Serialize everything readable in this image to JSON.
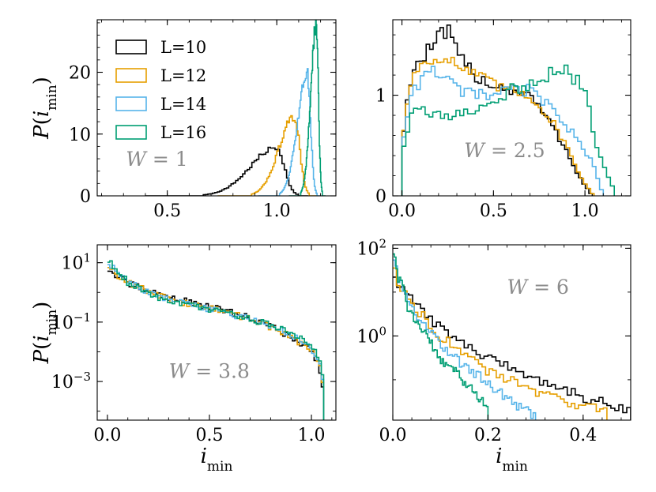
{
  "colors": {
    "L=10": "#000000",
    "L=12": "#E69F00",
    "L=14": "#56B4E9",
    "L=16": "#009E73",
    "annotation": "#8c8c8c"
  },
  "legend": {
    "entries": [
      {
        "label": "L=10",
        "color": "#000000"
      },
      {
        "label": "L=12",
        "color": "#E69F00"
      },
      {
        "label": "L=14",
        "color": "#56B4E9"
      },
      {
        "label": "L=16",
        "color": "#009E73"
      }
    ],
    "placement": "upper-left of top-left panel"
  },
  "chart_data": [
    {
      "type": "line",
      "style": "step",
      "panel": "top-left",
      "annotation": "W = 1",
      "ylabel": "P(i_min)",
      "xlabel": "",
      "xlim": [
        0.18,
        1.27
      ],
      "ylim": [
        0,
        28.5
      ],
      "yscale": "linear",
      "xticks": [
        0.5,
        1.0
      ],
      "xticklabels": [
        "0.5",
        "1.0"
      ],
      "yticks": [
        0,
        10,
        20
      ],
      "yticklabels": [
        "0",
        "10",
        "20"
      ],
      "series": [
        {
          "name": "L=10",
          "kind": "peak",
          "center": 1.0,
          "width_left": 0.12,
          "width_right": 0.035,
          "height": 7.8
        },
        {
          "name": "L=12",
          "kind": "peak",
          "center": 1.08,
          "width_left": 0.07,
          "width_right": 0.025,
          "height": 12.7
        },
        {
          "name": "L=14",
          "kind": "peak",
          "center": 1.14,
          "width_left": 0.045,
          "width_right": 0.015,
          "height": 19.5
        },
        {
          "name": "L=16",
          "kind": "peak",
          "center": 1.18,
          "width_left": 0.025,
          "width_right": 0.01,
          "height": 27.5
        }
      ]
    },
    {
      "type": "line",
      "style": "step",
      "panel": "top-right",
      "annotation": "W = 2.5",
      "ylabel": "",
      "xlabel": "",
      "xlim": [
        -0.05,
        1.25
      ],
      "ylim": [
        0,
        1.75
      ],
      "yscale": "linear",
      "xticks": [
        0.0,
        0.5,
        1.0
      ],
      "xticklabels": [
        "0.0",
        "0.5",
        "1.0"
      ],
      "yticks": [
        0,
        1
      ],
      "yticklabels": [
        "0",
        "1"
      ],
      "series": [
        {
          "name": "L=10",
          "kind": "curve",
          "x": [
            0.0,
            0.01,
            0.05,
            0.1,
            0.2,
            0.25,
            0.3,
            0.4,
            0.5,
            0.6,
            0.7,
            0.8,
            0.9,
            0.95,
            1.0,
            1.04
          ],
          "y": [
            0.0,
            0.7,
            1.2,
            1.35,
            1.55,
            1.65,
            1.4,
            1.2,
            1.1,
            1.05,
            1.0,
            0.75,
            0.45,
            0.25,
            0.1,
            0.0
          ]
        },
        {
          "name": "L=12",
          "kind": "curve",
          "x": [
            0.0,
            0.01,
            0.05,
            0.1,
            0.2,
            0.3,
            0.4,
            0.5,
            0.6,
            0.7,
            0.8,
            0.9,
            0.95,
            1.0,
            1.05
          ],
          "y": [
            0.0,
            0.7,
            1.15,
            1.3,
            1.4,
            1.3,
            1.2,
            1.1,
            1.05,
            1.0,
            0.8,
            0.5,
            0.3,
            0.12,
            0.0
          ]
        },
        {
          "name": "L=14",
          "kind": "curve",
          "x": [
            0.0,
            0.01,
            0.05,
            0.1,
            0.2,
            0.3,
            0.4,
            0.5,
            0.6,
            0.7,
            0.8,
            0.9,
            1.0,
            1.05,
            1.1
          ],
          "y": [
            0.0,
            0.6,
            1.0,
            1.15,
            1.25,
            1.05,
            1.0,
            1.0,
            1.05,
            1.05,
            0.9,
            0.7,
            0.45,
            0.3,
            0.0
          ]
        },
        {
          "name": "L=16",
          "kind": "curve",
          "x": [
            0.0,
            0.01,
            0.05,
            0.1,
            0.2,
            0.3,
            0.4,
            0.5,
            0.6,
            0.7,
            0.8,
            0.9,
            1.0,
            1.05,
            1.1,
            1.15,
            1.16
          ],
          "y": [
            0.0,
            0.5,
            0.8,
            0.85,
            0.8,
            0.8,
            0.85,
            0.95,
            1.05,
            1.1,
            1.2,
            1.25,
            1.05,
            0.6,
            0.3,
            0.1,
            0.0
          ]
        }
      ]
    },
    {
      "type": "line",
      "style": "step",
      "panel": "bottom-left",
      "annotation": "W = 3.8",
      "ylabel": "P(i_min)",
      "xlabel": "i_min",
      "xlim": [
        -0.05,
        1.12
      ],
      "ylim": [
        5e-05,
        40
      ],
      "yscale": "log",
      "xticks": [
        0.0,
        0.5,
        1.0
      ],
      "xticklabels": [
        "0.0",
        "0.5",
        "1.0"
      ],
      "yticks": [
        10,
        0.1,
        0.001
      ],
      "yticklabels": [
        "10^1",
        "10^-1",
        "10^-3"
      ],
      "series": [
        {
          "name": "L=10",
          "kind": "curve",
          "x": [
            0.0,
            0.05,
            0.1,
            0.2,
            0.3,
            0.4,
            0.5,
            0.6,
            0.7,
            0.8,
            0.9,
            1.0,
            1.05,
            1.06
          ],
          "y": [
            6.0,
            3.5,
            2.0,
            1.1,
            0.7,
            0.48,
            0.33,
            0.22,
            0.14,
            0.07,
            0.03,
            0.01,
            0.001,
            0.0002
          ]
        },
        {
          "name": "L=12",
          "kind": "curve",
          "x": [
            0.0,
            0.05,
            0.1,
            0.2,
            0.3,
            0.4,
            0.5,
            0.6,
            0.7,
            0.8,
            0.9,
            1.0,
            1.05,
            1.06
          ],
          "y": [
            8.0,
            4.0,
            2.2,
            1.0,
            0.62,
            0.42,
            0.3,
            0.2,
            0.13,
            0.07,
            0.03,
            0.01,
            0.0015,
            0.0002
          ]
        },
        {
          "name": "L=14",
          "kind": "curve",
          "x": [
            0.0,
            0.05,
            0.1,
            0.2,
            0.3,
            0.4,
            0.5,
            0.6,
            0.7,
            0.8,
            0.9,
            1.0,
            1.05,
            1.06
          ],
          "y": [
            10.0,
            4.5,
            2.3,
            0.95,
            0.58,
            0.4,
            0.28,
            0.19,
            0.13,
            0.075,
            0.035,
            0.012,
            0.002,
            0.0002
          ]
        },
        {
          "name": "L=16",
          "kind": "curve",
          "x": [
            0.0,
            0.05,
            0.1,
            0.2,
            0.3,
            0.4,
            0.5,
            0.6,
            0.7,
            0.8,
            0.9,
            1.0,
            1.05,
            1.06
          ],
          "y": [
            12.0,
            4.8,
            2.2,
            0.9,
            0.55,
            0.38,
            0.27,
            0.19,
            0.13,
            0.08,
            0.04,
            0.015,
            0.003,
            0.0002
          ]
        }
      ]
    },
    {
      "type": "line",
      "style": "step",
      "panel": "bottom-right",
      "annotation": "W = 6",
      "ylabel": "",
      "xlabel": "i_min",
      "xlim": [
        0.0,
        0.5
      ],
      "ylim": [
        0.012,
        120
      ],
      "yscale": "log",
      "xticks": [
        0.0,
        0.2,
        0.4
      ],
      "xticklabels": [
        "0.0",
        "0.2",
        "0.4"
      ],
      "yticks": [
        100,
        1
      ],
      "yticklabels": [
        "10^2",
        "10^0"
      ],
      "series": [
        {
          "name": "L=10",
          "kind": "curve",
          "x": [
            0.0,
            0.01,
            0.03,
            0.05,
            0.08,
            0.1,
            0.15,
            0.2,
            0.3,
            0.4,
            0.5
          ],
          "y": [
            30.0,
            15.0,
            8.0,
            5.0,
            2.5,
            1.6,
            0.6,
            0.3,
            0.1,
            0.04,
            0.02
          ]
        },
        {
          "name": "L=12",
          "kind": "curve",
          "x": [
            0.0,
            0.01,
            0.03,
            0.05,
            0.08,
            0.1,
            0.15,
            0.2,
            0.3,
            0.4,
            0.45
          ],
          "y": [
            50.0,
            18.0,
            7.0,
            4.0,
            1.8,
            1.0,
            0.35,
            0.15,
            0.05,
            0.025,
            0.02
          ]
        },
        {
          "name": "L=14",
          "kind": "curve",
          "x": [
            0.0,
            0.01,
            0.03,
            0.05,
            0.08,
            0.1,
            0.15,
            0.2,
            0.25,
            0.3
          ],
          "y": [
            70.0,
            20.0,
            6.5,
            3.0,
            1.2,
            0.6,
            0.2,
            0.08,
            0.03,
            0.015
          ]
        },
        {
          "name": "L=16",
          "kind": "curve",
          "x": [
            0.0,
            0.01,
            0.03,
            0.05,
            0.08,
            0.1,
            0.15,
            0.2
          ],
          "y": [
            90.0,
            22.0,
            5.0,
            2.0,
            0.7,
            0.3,
            0.08,
            0.02
          ]
        }
      ]
    }
  ]
}
